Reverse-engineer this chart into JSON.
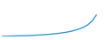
{
  "x": [
    0,
    1,
    2,
    3,
    4,
    5,
    6,
    7,
    8,
    9,
    10,
    11,
    12,
    13,
    14,
    15,
    16,
    17,
    18,
    19,
    20,
    21,
    22,
    23,
    24
  ],
  "y": [
    0.5,
    0.6,
    0.7,
    0.8,
    0.9,
    1.0,
    1.1,
    1.3,
    1.5,
    1.7,
    2.0,
    2.3,
    2.7,
    3.1,
    3.6,
    4.2,
    5.0,
    6.0,
    7.2,
    8.8,
    11.0,
    14.5,
    20.0,
    null,
    28.0
  ],
  "line_color": "#3399cc",
  "bg_color": "#ffffff",
  "linewidth": 1.0,
  "ylim": [
    0,
    32
  ],
  "xlim": [
    0,
    24
  ]
}
